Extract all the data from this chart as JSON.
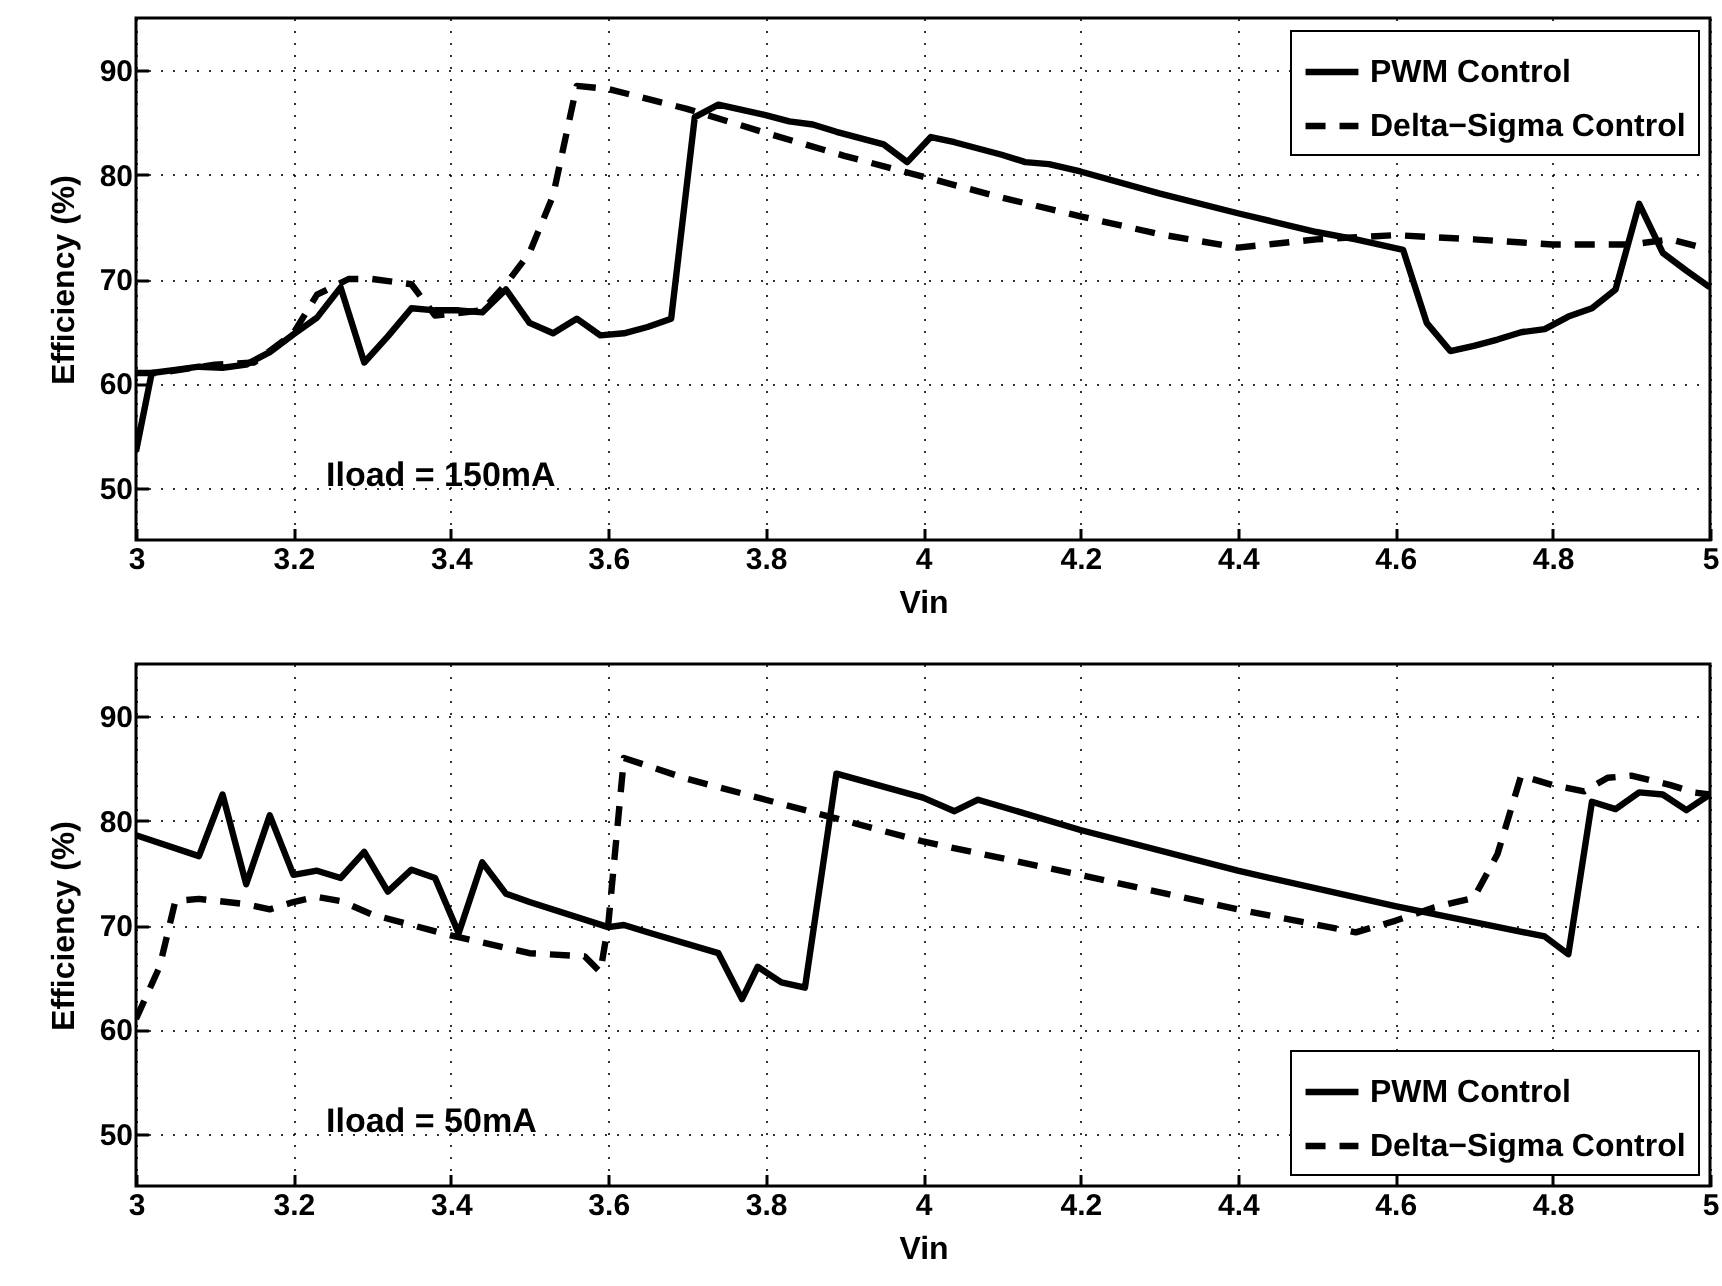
{
  "chart_data": [
    {
      "type": "line",
      "xlabel": "Vin",
      "ylabel": "Efficiency (%)",
      "xlim": [
        3,
        5
      ],
      "ylim": [
        45,
        95
      ],
      "xticks": [
        3,
        3.2,
        3.4,
        3.6,
        3.8,
        4,
        4.2,
        4.4,
        4.6,
        4.8,
        5
      ],
      "yticks": [
        50,
        60,
        70,
        80,
        90
      ],
      "grid": true,
      "legend": "top right",
      "annotations": [
        "Iload = 150mA"
      ],
      "series": [
        {
          "name": "PWM Control",
          "color": "#000000",
          "line_style": "solid",
          "x": [
            3,
            3.02,
            3.05,
            3.08,
            3.11,
            3.14,
            3.17,
            3.2,
            3.23,
            3.26,
            3.29,
            3.32,
            3.35,
            3.38,
            3.41,
            3.44,
            3.47,
            3.5,
            3.53,
            3.56,
            3.59,
            3.62,
            3.65,
            3.68,
            3.71,
            3.74,
            3.77,
            3.8,
            3.83,
            3.86,
            3.89,
            3.92,
            3.95,
            3.98,
            4.01,
            4.04,
            4.07,
            4.1,
            4.13,
            4.16,
            4.2,
            4.3,
            4.4,
            4.5,
            4.55,
            4.61,
            4.64,
            4.67,
            4.7,
            4.73,
            4.76,
            4.79,
            4.82,
            4.85,
            4.88,
            4.91,
            4.94,
            4.97,
            5
          ],
          "values": [
            53.5,
            61,
            61.3,
            61.6,
            61.5,
            61.8,
            63,
            64.7,
            66.3,
            69.2,
            62,
            64.5,
            67.2,
            67,
            67,
            66.8,
            69,
            65.8,
            64.8,
            66.2,
            64.6,
            64.8,
            65.4,
            66.2,
            85.5,
            86.7,
            86.2,
            85.7,
            85.1,
            84.8,
            84.1,
            83.5,
            82.9,
            81.2,
            83.6,
            83.1,
            82.5,
            81.9,
            81.2,
            81,
            80.3,
            78.2,
            76.3,
            74.5,
            73.8,
            72.8,
            65.8,
            63.1,
            63.6,
            64.2,
            64.9,
            65.2,
            66.4,
            67.2,
            69,
            77.2,
            72.5,
            70.8,
            69.2
          ]
        },
        {
          "name": "Delta−Sigma Control",
          "color": "#000000",
          "line_style": "dashed",
          "x": [
            3,
            3.03,
            3.1,
            3.15,
            3.2,
            3.23,
            3.27,
            3.3,
            3.35,
            3.38,
            3.44,
            3.47,
            3.5,
            3.53,
            3.56,
            3.6,
            3.7,
            3.8,
            3.9,
            4,
            4.1,
            4.2,
            4.3,
            4.4,
            4.5,
            4.6,
            4.7,
            4.8,
            4.9,
            4.95,
            5
          ],
          "values": [
            61,
            61,
            61.8,
            62,
            64.8,
            68.5,
            70,
            70,
            69.5,
            66.5,
            67,
            69.5,
            72.5,
            78,
            88.5,
            88.2,
            86.3,
            84,
            81.8,
            79.8,
            77.8,
            76,
            74.3,
            73,
            73.8,
            74.2,
            73.8,
            73.3,
            73.3,
            73.8,
            72.8
          ]
        }
      ]
    },
    {
      "type": "line",
      "xlabel": "Vin",
      "ylabel": "Efficiency (%)",
      "xlim": [
        3,
        5
      ],
      "ylim": [
        45,
        95
      ],
      "xticks": [
        3,
        3.2,
        3.4,
        3.6,
        3.8,
        4,
        4.2,
        4.4,
        4.6,
        4.8,
        5
      ],
      "yticks": [
        50,
        60,
        70,
        80,
        90
      ],
      "grid": true,
      "legend": "bottom right",
      "annotations": [
        "Iload = 50mA"
      ],
      "series": [
        {
          "name": "PWM Control",
          "color": "#000000",
          "line_style": "solid",
          "x": [
            3,
            3.08,
            3.11,
            3.14,
            3.17,
            3.2,
            3.23,
            3.26,
            3.29,
            3.32,
            3.35,
            3.38,
            3.41,
            3.44,
            3.47,
            3.5,
            3.6,
            3.62,
            3.65,
            3.74,
            3.77,
            3.79,
            3.82,
            3.85,
            3.89,
            4,
            4.04,
            4.07,
            4.2,
            4.4,
            4.6,
            4.79,
            4.82,
            4.85,
            4.88,
            4.91,
            4.94,
            4.97,
            5
          ],
          "values": [
            78.6,
            76.6,
            82.5,
            73.9,
            80.5,
            74.8,
            75.2,
            74.5,
            77,
            73.2,
            75.3,
            74.5,
            69.2,
            76,
            73,
            72.2,
            69.8,
            70,
            69.3,
            67.3,
            62.9,
            66,
            64.5,
            64,
            84.5,
            82.2,
            80.9,
            82,
            79.1,
            75.2,
            71.8,
            68.9,
            67.2,
            81.8,
            81.1,
            82.7,
            82.5,
            81,
            82.5
          ]
        },
        {
          "name": "Delta−Sigma Control",
          "color": "#000000",
          "line_style": "dashed",
          "x": [
            3,
            3.03,
            3.05,
            3.08,
            3.14,
            3.17,
            3.2,
            3.23,
            3.26,
            3.3,
            3.4,
            3.5,
            3.57,
            3.59,
            3.6,
            3.62,
            3.7,
            3.8,
            3.9,
            4,
            4.2,
            4.4,
            4.55,
            4.6,
            4.65,
            4.7,
            4.73,
            4.76,
            4.8,
            4.84,
            4.87,
            4.9,
            4.95,
            4.98,
            5
          ],
          "values": [
            61,
            66,
            72.3,
            72.5,
            72,
            71.5,
            72.2,
            72.7,
            72.3,
            71,
            69,
            67.3,
            67,
            65.5,
            70,
            86,
            84,
            82,
            80,
            78,
            74.8,
            71.5,
            69.3,
            70.4,
            71.7,
            72.6,
            76.8,
            84.3,
            83.4,
            82.8,
            84.1,
            84.3,
            83.4,
            82.7,
            82.5
          ]
        }
      ]
    }
  ]
}
